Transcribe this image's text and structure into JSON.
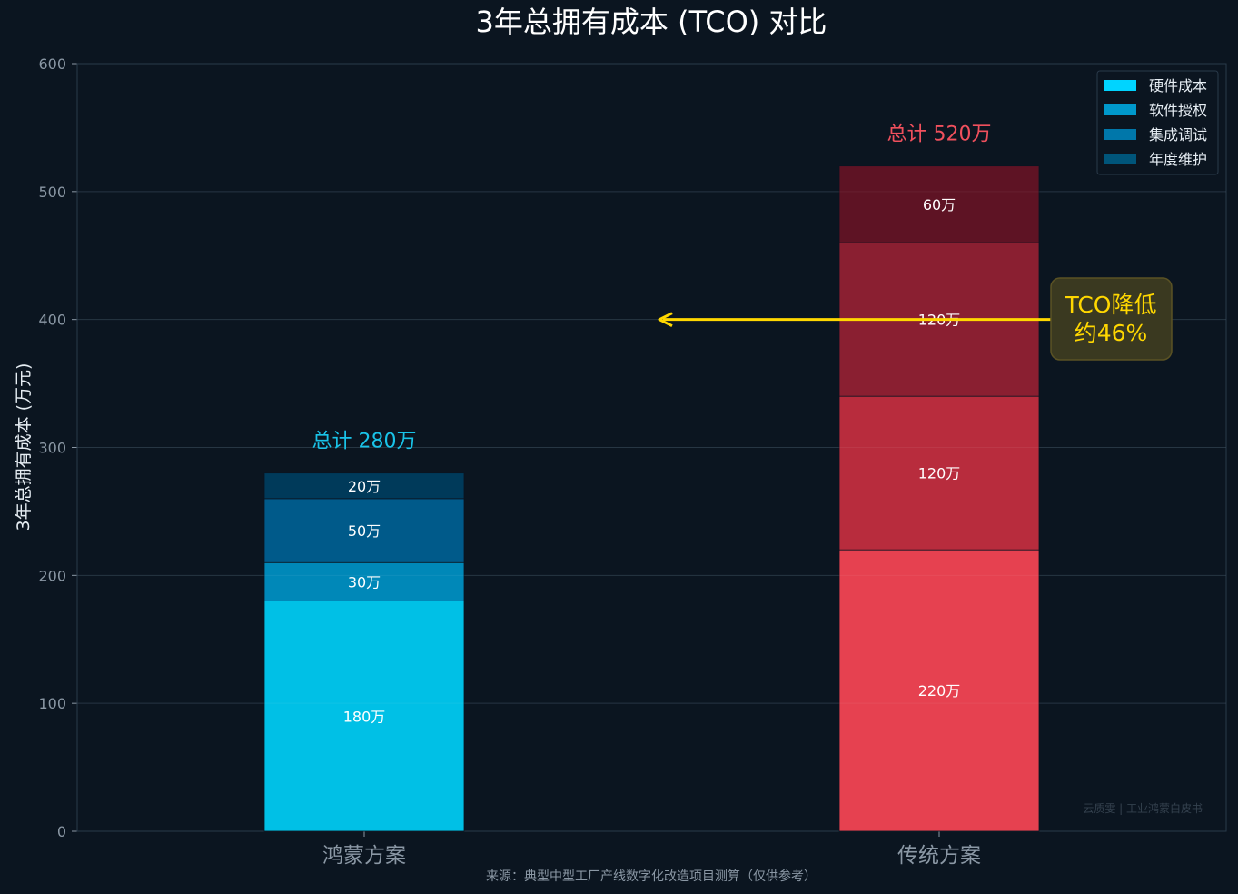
{
  "chart_data": {
    "type": "bar",
    "stacked": true,
    "title": "3年总拥有成本 (TCO) 对比",
    "ylabel": "3年总拥有成本 (万元)",
    "xlabel": "",
    "ylim": [
      0,
      600
    ],
    "yticks": [
      0,
      100,
      200,
      300,
      400,
      500,
      600
    ],
    "grid": true,
    "legend_position": "top-right",
    "categories": [
      "鸿蒙方案",
      "传统方案"
    ],
    "series": [
      {
        "name": "硬件成本",
        "values": [
          180,
          220
        ]
      },
      {
        "name": "软件授权",
        "values": [
          30,
          120
        ]
      },
      {
        "name": "集成调试",
        "values": [
          50,
          120
        ]
      },
      {
        "name": "年度维护",
        "values": [
          20,
          60
        ]
      }
    ],
    "segment_labels": [
      [
        "180万",
        "30万",
        "50万",
        "20万"
      ],
      [
        "220万",
        "120万",
        "120万",
        "60万"
      ]
    ],
    "totals": [
      {
        "label": "总计 280万",
        "value": 280
      },
      {
        "label": "总计 520万",
        "value": 520
      }
    ],
    "annotation": {
      "line1": "TCO降低",
      "line2": "约46%",
      "arrow_y": 400
    },
    "source": "来源：典型中型工厂产线数字化改造项目测算（仅供参考）",
    "watermark": "云质雯 | 工业鸿蒙白皮书"
  },
  "colors": {
    "background": "#0b1520",
    "grid": "#1a2a38",
    "axis": "#2a3a4a",
    "tick_text": "#8b98a5",
    "title": "#ffffff",
    "legend_swatches": [
      "#00d4ff",
      "#0099cc",
      "#0077aa",
      "#00557a"
    ],
    "hongmeng_segments": [
      "#00c0e6",
      "#0088b8",
      "#005a8a",
      "#003a5a"
    ],
    "traditional_segments": [
      "#e64150",
      "#b82c3d",
      "#8a1f31",
      "#5e1324"
    ],
    "hongmeng_total": "#19c3e8",
    "traditional_total": "#f0505d",
    "annotation": "#ffd700",
    "annotation_bg": "#3a3920"
  }
}
